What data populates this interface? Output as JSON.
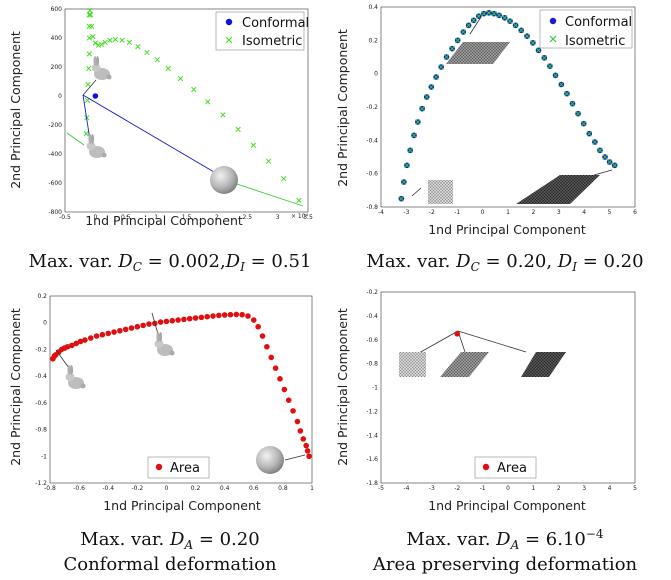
{
  "chart_data": [
    {
      "type": "scatter",
      "xlabel": "1nd Principal Component",
      "ylabel": "2nd Principal Component",
      "xlim": [
        -0.5,
        3.5
      ],
      "ylim": [
        -800,
        600
      ],
      "xticks": [
        "-0.5",
        "0",
        "0.5",
        "1",
        "1.5",
        "2",
        "2.5",
        "3",
        "3.5"
      ],
      "yticks": [
        "600",
        "400",
        "200",
        "0",
        "-200",
        "-400",
        "-600",
        "-800"
      ],
      "x_exponent": "× 10⁴",
      "legend_position": "top-right",
      "series": [
        {
          "name": "Conformal",
          "marker": "dot",
          "color": "#1010e0",
          "x": [
            0
          ],
          "y": [
            0
          ]
        },
        {
          "name": "Isometric",
          "marker": "cross",
          "color": "#44dd22",
          "x": [
            -0.15,
            -0.14,
            -0.13,
            -0.12,
            -0.11,
            -0.1,
            -0.1,
            -0.1,
            -0.1,
            -0.09,
            -0.08,
            -0.06,
            -0.04,
            0.0,
            0.05,
            0.1,
            0.16,
            0.24,
            0.33,
            0.44,
            0.56,
            0.7,
            0.85,
            1.02,
            1.2,
            1.4,
            1.62,
            1.85,
            2.1,
            2.35,
            2.6,
            2.85,
            3.1,
            3.35
          ],
          "y": [
            -260,
            -150,
            -30,
            80,
            190,
            290,
            400,
            480,
            560,
            590,
            560,
            480,
            410,
            365,
            350,
            355,
            370,
            385,
            390,
            385,
            370,
            340,
            300,
            250,
            190,
            120,
            45,
            -40,
            -130,
            -230,
            -340,
            -450,
            -570,
            -720
          ]
        }
      ]
    },
    {
      "type": "scatter",
      "xlabel": "1nd Principal Component",
      "ylabel": "2nd Principal Component",
      "xlim": [
        -4,
        6
      ],
      "ylim": [
        -0.8,
        0.4
      ],
      "xticks": [
        "-4",
        "-3",
        "-2",
        "-1",
        "0",
        "1",
        "2",
        "3",
        "4",
        "5",
        "6"
      ],
      "yticks": [
        "0.4",
        "0.2",
        "0",
        "-0.2",
        "-0.4",
        "-0.6",
        "-0.8"
      ],
      "legend_position": "top-right",
      "series": [
        {
          "name": "Conformal",
          "marker": "dot",
          "color": "#1a1ad0",
          "x": [
            -3.2,
            -3.1,
            -2.98,
            -2.85,
            -2.7,
            -2.55,
            -2.38,
            -2.2,
            -2.02,
            -1.83,
            -1.63,
            -1.42,
            -1.2,
            -0.98,
            -0.76,
            -0.55,
            -0.35,
            -0.15,
            0.05,
            0.25,
            0.45,
            0.65,
            0.87,
            1.08,
            1.3,
            1.52,
            1.75,
            1.98,
            2.2,
            2.43,
            2.65,
            2.87,
            3.1,
            3.32,
            3.54,
            3.76,
            3.98,
            4.2,
            4.42,
            4.62,
            4.82,
            5.0,
            5.2
          ],
          "y": [
            -0.75,
            -0.65,
            -0.55,
            -0.46,
            -0.37,
            -0.29,
            -0.21,
            -0.14,
            -0.08,
            -0.02,
            0.04,
            0.1,
            0.15,
            0.2,
            0.25,
            0.29,
            0.32,
            0.345,
            0.36,
            0.365,
            0.36,
            0.35,
            0.335,
            0.315,
            0.29,
            0.26,
            0.225,
            0.185,
            0.14,
            0.095,
            0.045,
            -0.01,
            -0.065,
            -0.12,
            -0.18,
            -0.24,
            -0.3,
            -0.36,
            -0.41,
            -0.46,
            -0.5,
            -0.53,
            -0.55
          ]
        },
        {
          "name": "Isometric",
          "marker": "cross",
          "color": "#33cc33",
          "x": [
            -3.2,
            -3.1,
            -2.98,
            -2.85,
            -2.7,
            -2.55,
            -2.38,
            -2.2,
            -2.02,
            -1.83,
            -1.63,
            -1.42,
            -1.2,
            -0.98,
            -0.76,
            -0.55,
            -0.35,
            -0.15,
            0.05,
            0.25,
            0.45,
            0.65,
            0.87,
            1.08,
            1.3,
            1.52,
            1.75,
            1.98,
            2.2,
            2.43,
            2.65,
            2.87,
            3.1,
            3.32,
            3.54,
            3.76,
            3.98,
            4.2,
            4.42,
            4.62,
            4.82,
            5.0,
            5.2
          ],
          "y": [
            -0.75,
            -0.65,
            -0.55,
            -0.46,
            -0.37,
            -0.29,
            -0.21,
            -0.14,
            -0.08,
            -0.02,
            0.04,
            0.1,
            0.15,
            0.2,
            0.25,
            0.29,
            0.32,
            0.345,
            0.36,
            0.365,
            0.36,
            0.35,
            0.335,
            0.315,
            0.29,
            0.26,
            0.225,
            0.185,
            0.14,
            0.095,
            0.045,
            -0.01,
            -0.065,
            -0.12,
            -0.18,
            -0.24,
            -0.3,
            -0.36,
            -0.41,
            -0.46,
            -0.5,
            -0.53,
            -0.55
          ]
        }
      ]
    },
    {
      "type": "scatter",
      "xlabel": "1nd Principal Component",
      "ylabel": "2nd Principal Component",
      "xlim": [
        -0.8,
        1
      ],
      "ylim": [
        -1.2,
        0.2
      ],
      "xticks": [
        "-0.8",
        "-0.6",
        "-0.4",
        "-0.2",
        "0",
        "0.2",
        "0.4",
        "0.6",
        "0.8",
        "1"
      ],
      "yticks": [
        "0.2",
        "0",
        "-0.2",
        "-0.4",
        "-0.6",
        "-0.8",
        "-1",
        "-1.2"
      ],
      "legend_position": "bottom-left",
      "series": [
        {
          "name": "Area",
          "marker": "dot",
          "color": "#e01010",
          "x": [
            -0.78,
            -0.77,
            -0.76,
            -0.74,
            -0.72,
            -0.7,
            -0.68,
            -0.65,
            -0.62,
            -0.59,
            -0.56,
            -0.52,
            -0.48,
            -0.44,
            -0.4,
            -0.36,
            -0.32,
            -0.28,
            -0.24,
            -0.2,
            -0.16,
            -0.12,
            -0.08,
            -0.04,
            0.0,
            0.04,
            0.08,
            0.12,
            0.16,
            0.2,
            0.24,
            0.28,
            0.32,
            0.36,
            0.4,
            0.44,
            0.48,
            0.52,
            0.56,
            0.6,
            0.63,
            0.66,
            0.69,
            0.72,
            0.75,
            0.78,
            0.81,
            0.84,
            0.87,
            0.9,
            0.92,
            0.94,
            0.96,
            0.97,
            0.98
          ],
          "y": [
            -0.27,
            -0.25,
            -0.24,
            -0.22,
            -0.2,
            -0.19,
            -0.18,
            -0.17,
            -0.155,
            -0.14,
            -0.13,
            -0.115,
            -0.1,
            -0.09,
            -0.08,
            -0.07,
            -0.06,
            -0.05,
            -0.04,
            -0.03,
            -0.02,
            -0.01,
            -0.005,
            0.005,
            0.01,
            0.015,
            0.02,
            0.025,
            0.03,
            0.035,
            0.04,
            0.045,
            0.05,
            0.055,
            0.058,
            0.06,
            0.062,
            0.06,
            0.05,
            0.02,
            -0.03,
            -0.1,
            -0.18,
            -0.26,
            -0.34,
            -0.42,
            -0.5,
            -0.58,
            -0.66,
            -0.74,
            -0.81,
            -0.87,
            -0.92,
            -0.96,
            -1.0
          ]
        }
      ]
    },
    {
      "type": "scatter",
      "xlabel": "1nd Principal Component",
      "ylabel": "2nd Principal Component",
      "xlim": [
        -5,
        5
      ],
      "ylim": [
        -1.8,
        -0.2
      ],
      "xticks": [
        "-5",
        "-4",
        "-3",
        "-2",
        "-1",
        "0",
        "1",
        "2",
        "3",
        "4",
        "5"
      ],
      "yticks": [
        "-0.2",
        "-0.4",
        "-0.6",
        "-0.8",
        "-1",
        "-1.2",
        "-1.4",
        "-1.6",
        "-1.8"
      ],
      "legend_position": "bottom-left",
      "series": [
        {
          "name": "Area",
          "marker": "dot",
          "color": "#e01010",
          "x": [
            -2
          ],
          "y": [
            -0.55
          ]
        }
      ]
    }
  ],
  "captions": [
    {
      "main": "Max. var. D_C = 0.002, D_I = 0.51"
    },
    {
      "main": "Max. var. D_C = 0.20, D_I = 0.20"
    },
    {
      "main": "Max. var. D_A = 0.20",
      "sub": "Conformal deformation"
    },
    {
      "main": "Max. var. D_A = 6.10⁻⁴",
      "sub": "Area preserving deformation"
    }
  ],
  "caption_parts": {
    "p0a": "Max. var. ",
    "p0b": "D",
    "p0c": "C",
    "p0d": " = 0.002,",
    "p0e": "D",
    "p0f": "I",
    "p0g": " = 0.51",
    "p1a": "Max. var. ",
    "p1b": "D",
    "p1c": "C",
    "p1d": " = 0.20, ",
    "p1e": "D",
    "p1f": "I",
    "p1g": " = 0.20",
    "p2a": "Max. var. ",
    "p2b": "D",
    "p2c": "A",
    "p2d": " = 0.20",
    "p2sub": "Conformal deformation",
    "p3a": "Max. var. ",
    "p3b": "D",
    "p3c": "A",
    "p3d": " = 6.10",
    "p3e": "−4",
    "p3sub": "Area preserving deformation"
  }
}
